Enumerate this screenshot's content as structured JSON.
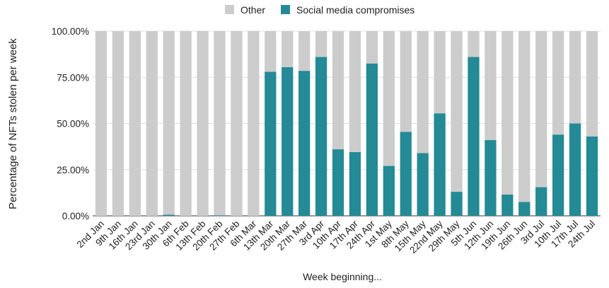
{
  "chart_data": {
    "type": "bar",
    "stacked": true,
    "title": "",
    "xlabel": "Week beginning...",
    "ylabel": "Percentage of NFTs stolen per week",
    "ylim": [
      0,
      100
    ],
    "yticks": [
      "0.00%",
      "25.00%",
      "50.00%",
      "75.00%",
      "100.00%"
    ],
    "ytick_values": [
      0,
      25,
      50,
      75,
      100
    ],
    "legend_position": "top",
    "grid": true,
    "categories": [
      "2nd Jan",
      "9th Jan",
      "16th Jan",
      "23rd Jan",
      "30th Jan",
      "6th Feb",
      "13th Feb",
      "20th Feb",
      "27th Feb",
      "6th Mar",
      "13th Mar",
      "20th Mar",
      "27th Mar",
      "3rd Apr",
      "10th Apr",
      "17th Apr",
      "24th Apr",
      "1st May",
      "8th May",
      "15th May",
      "22nd May",
      "29th May",
      "5th Jun",
      "12th Jun",
      "19th Jun",
      "26th Jun",
      "3rd Jul",
      "10th Jul",
      "17th Jul",
      "24th Jul"
    ],
    "series": [
      {
        "name": "Social media compromises",
        "color": "#238a96",
        "values": [
          0,
          0,
          0,
          0,
          0.6,
          0,
          0,
          0.3,
          0,
          0,
          78,
          80.5,
          78.5,
          86,
          36,
          34.5,
          82.5,
          27,
          45.5,
          34,
          55.5,
          13,
          86,
          41,
          11.5,
          7.5,
          15.5,
          44,
          50,
          43
        ]
      },
      {
        "name": "Other",
        "color": "#cccccc",
        "values": [
          100,
          100,
          100,
          100,
          99.4,
          100,
          100,
          99.7,
          100,
          100,
          22,
          19.5,
          21.5,
          14,
          64,
          65.5,
          17.5,
          73,
          54.5,
          66,
          44.5,
          87,
          14,
          59,
          88.5,
          92.5,
          84.5,
          56,
          50,
          57
        ]
      }
    ],
    "legend_order": [
      "Other",
      "Social media compromises"
    ]
  }
}
